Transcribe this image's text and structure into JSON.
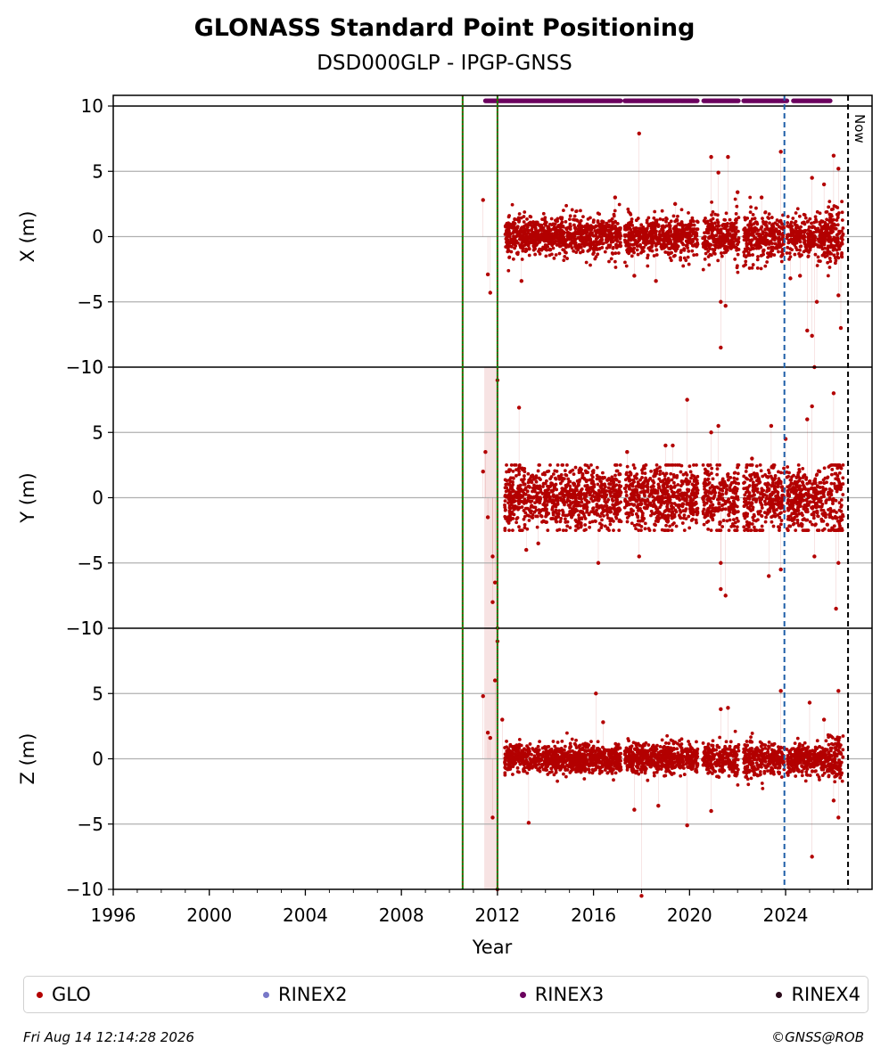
{
  "chart_data": {
    "type": "scatter",
    "title": "GLONASS Standard Point Positioning",
    "subtitle": "DSD000GLP - IPGP-GNSS",
    "xlabel": "Year",
    "xlim": [
      1996,
      2027.6
    ],
    "x_ticks": [
      "1996",
      "2000",
      "2004",
      "2008",
      "2012",
      "2016",
      "2020",
      "2024"
    ],
    "x_tick_values": [
      1996,
      2000,
      2004,
      2008,
      2012,
      2016,
      2020,
      2024
    ],
    "grid": "horizontal",
    "legend_placement": "bottom",
    "panels": [
      {
        "ylabel": "X (m)",
        "ylim": [
          -10,
          10
        ],
        "ticks": [
          "10",
          "5",
          "0",
          "−5",
          "−10"
        ],
        "series_name": "GLO",
        "color": "#b30000",
        "dense_band": {
          "start": 2012.3,
          "end": 2026.4,
          "sigma": 0.75
        },
        "points": [
          [
            2011.4,
            2.8
          ],
          [
            2011.6,
            -2.9
          ],
          [
            2011.7,
            -4.3
          ],
          [
            2013.0,
            -3.4
          ],
          [
            2016.9,
            3.0
          ],
          [
            2017.7,
            -3.0
          ],
          [
            2017.9,
            7.9
          ],
          [
            2018.6,
            -3.4
          ],
          [
            2019.4,
            2.5
          ],
          [
            2020.9,
            6.1
          ],
          [
            2021.2,
            4.9
          ],
          [
            2021.3,
            -5.0
          ],
          [
            2021.3,
            -8.5
          ],
          [
            2021.5,
            -5.3
          ],
          [
            2021.6,
            6.1
          ],
          [
            2022.0,
            3.4
          ],
          [
            2023.0,
            3.0
          ],
          [
            2023.8,
            6.5
          ],
          [
            2024.2,
            -3.2
          ],
          [
            2024.6,
            -3.0
          ],
          [
            2024.9,
            -7.2
          ],
          [
            2025.1,
            4.5
          ],
          [
            2025.1,
            -7.6
          ],
          [
            2025.2,
            -10.0
          ],
          [
            2025.3,
            -5.0
          ],
          [
            2025.6,
            4.0
          ],
          [
            2026.0,
            6.2
          ],
          [
            2026.2,
            -4.5
          ],
          [
            2026.3,
            -7.0
          ],
          [
            2026.2,
            5.2
          ]
        ]
      },
      {
        "ylabel": "Y (m)",
        "ylim": [
          -10,
          10
        ],
        "ticks": [
          "10",
          "5",
          "0",
          "−5",
          "−10"
        ],
        "series_name": "GLO",
        "color": "#b30000",
        "dense_band": {
          "start": 2012.3,
          "end": 2026.4,
          "sigma": 1.2
        },
        "points": [
          [
            2011.4,
            2.0
          ],
          [
            2011.5,
            3.5
          ],
          [
            2011.6,
            -1.5
          ],
          [
            2011.8,
            -4.5
          ],
          [
            2011.8,
            -8.0
          ],
          [
            2011.9,
            -6.5
          ],
          [
            2012.0,
            -10.0
          ],
          [
            2012.0,
            9.0
          ],
          [
            2012.9,
            6.9
          ],
          [
            2013.2,
            -4.0
          ],
          [
            2013.7,
            -3.5
          ],
          [
            2016.2,
            -5.0
          ],
          [
            2017.4,
            3.5
          ],
          [
            2017.9,
            -4.5
          ],
          [
            2019.0,
            4.0
          ],
          [
            2019.3,
            4.0
          ],
          [
            2019.9,
            7.5
          ],
          [
            2020.9,
            5.0
          ],
          [
            2021.2,
            5.5
          ],
          [
            2021.3,
            -7.0
          ],
          [
            2021.5,
            -7.5
          ],
          [
            2021.3,
            -5.0
          ],
          [
            2022.6,
            3.0
          ],
          [
            2023.3,
            -6.0
          ],
          [
            2023.4,
            5.5
          ],
          [
            2023.8,
            -5.5
          ],
          [
            2024.0,
            4.5
          ],
          [
            2024.9,
            6.0
          ],
          [
            2025.1,
            7.0
          ],
          [
            2025.2,
            -4.5
          ],
          [
            2026.0,
            8.0
          ],
          [
            2026.1,
            -8.5
          ],
          [
            2026.2,
            -5.0
          ]
        ]
      },
      {
        "ylabel": "Z (m)",
        "ylim": [
          -10,
          10
        ],
        "ticks": [
          "10",
          "5",
          "0",
          "−5",
          "−10"
        ],
        "series_name": "GLO",
        "color": "#b30000",
        "dense_band": {
          "start": 2012.3,
          "end": 2026.4,
          "sigma": 0.55
        },
        "points": [
          [
            2011.4,
            4.8
          ],
          [
            2011.6,
            2.0
          ],
          [
            2011.7,
            1.6
          ],
          [
            2011.8,
            -4.5
          ],
          [
            2011.9,
            6.0
          ],
          [
            2012.0,
            -10.0
          ],
          [
            2012.0,
            9.0
          ],
          [
            2012.2,
            3.0
          ],
          [
            2013.3,
            -4.9
          ],
          [
            2016.1,
            5.0
          ],
          [
            2016.4,
            2.8
          ],
          [
            2017.7,
            -3.9
          ],
          [
            2018.0,
            -10.5
          ],
          [
            2018.7,
            -3.6
          ],
          [
            2019.9,
            -5.1
          ],
          [
            2020.9,
            -4.0
          ],
          [
            2021.3,
            3.8
          ],
          [
            2021.6,
            3.9
          ],
          [
            2023.8,
            5.2
          ],
          [
            2025.0,
            4.3
          ],
          [
            2025.1,
            -7.5
          ],
          [
            2025.6,
            3.0
          ],
          [
            2026.0,
            -3.2
          ],
          [
            2026.2,
            -4.5
          ],
          [
            2026.2,
            5.2
          ]
        ]
      }
    ],
    "top_series": {
      "name": "RINEX3",
      "color": "#6b005e",
      "y": 10.4,
      "start": 2011.5,
      "end": 2025.9,
      "gaps": [
        [
          2017.15,
          2017.3
        ],
        [
          2020.35,
          2020.55
        ],
        [
          2022.05,
          2022.25
        ],
        [
          2024.1,
          2024.3
        ]
      ]
    },
    "vertical_markers": [
      {
        "x": 2010.55,
        "color": "#008000",
        "style": "solid-dotted"
      },
      {
        "x": 2012.0,
        "color": "#008000",
        "style": "solid-dotted"
      },
      {
        "x": 2023.95,
        "color": "#1f5fa8",
        "style": "dashed"
      },
      {
        "x": 2026.6,
        "color": "#000000",
        "style": "dashed",
        "label": "Now"
      }
    ],
    "shaded_spans": [
      {
        "from": 2011.45,
        "to": 2012.05,
        "color": "#f4d7d7"
      }
    ],
    "legend": [
      {
        "label": "GLO",
        "color": "#b30000"
      },
      {
        "label": "RINEX2",
        "color": "#7878c8"
      },
      {
        "label": "RINEX3",
        "color": "#6b005e"
      },
      {
        "label": "RINEX4",
        "color": "#2a0a1a"
      }
    ]
  },
  "footer": {
    "date": "Fri Aug 14 12:14:28 2026",
    "copyright": "©GNSS@ROB"
  }
}
